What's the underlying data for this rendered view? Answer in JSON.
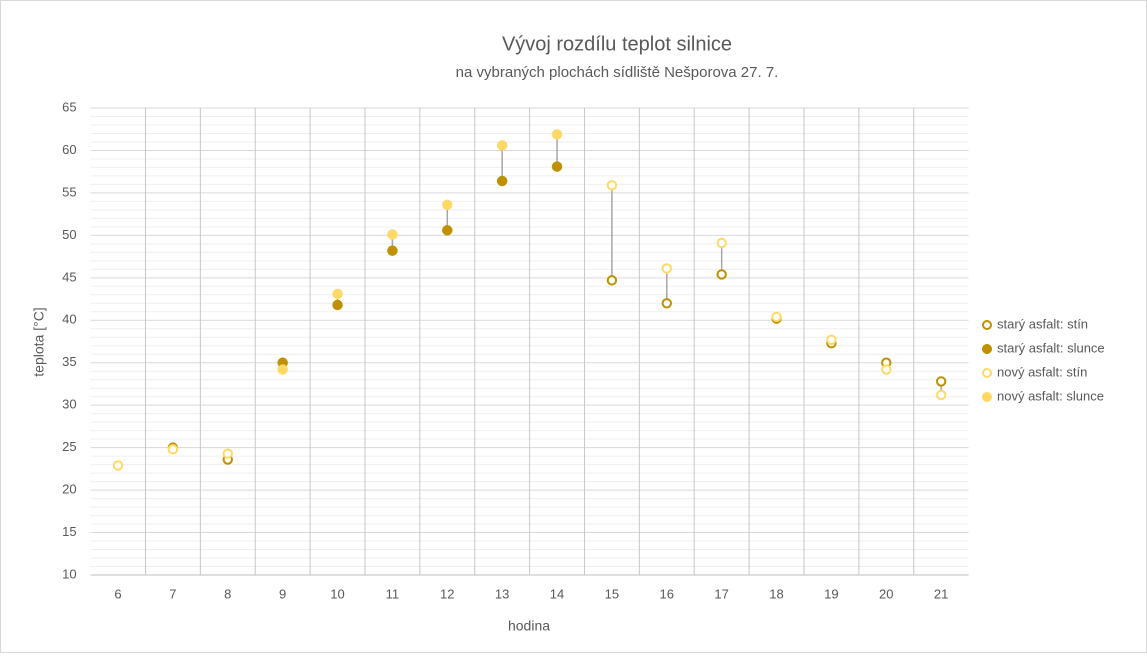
{
  "chart_data": {
    "type": "scatter",
    "title": "Vývoj rozdílu teplot silnice",
    "subtitle": "na vybraných plochách sídliště Nešporova 27. 7.",
    "x_label": "hodina",
    "y_label": "teplota [°C]",
    "categories": [
      "6",
      "7",
      "8",
      "9",
      "10",
      "11",
      "12",
      "13",
      "14",
      "15",
      "16",
      "17",
      "18",
      "19",
      "20",
      "21"
    ],
    "series": [
      {
        "name": "starý asfalt: stín",
        "color": "#bf9000",
        "hollow": true,
        "values": [
          null,
          25.0,
          23.6,
          null,
          null,
          null,
          null,
          null,
          null,
          44.7,
          42.0,
          45.4,
          40.2,
          37.3,
          35.0,
          32.8
        ]
      },
      {
        "name": "starý asfalt: slunce",
        "color": "#bf9000",
        "hollow": false,
        "values": [
          null,
          null,
          null,
          35.0,
          41.8,
          48.2,
          50.6,
          56.4,
          58.1,
          null,
          null,
          null,
          null,
          null,
          null,
          null
        ]
      },
      {
        "name": "nový asfalt: stín",
        "color": "#ffd966",
        "hollow": true,
        "values": [
          22.9,
          24.8,
          24.3,
          null,
          null,
          null,
          null,
          null,
          null,
          55.9,
          46.1,
          49.1,
          40.4,
          37.7,
          34.2,
          31.2
        ]
      },
      {
        "name": "nový asfalt: slunce",
        "color": "#ffd966",
        "hollow": false,
        "values": [
          null,
          null,
          null,
          34.2,
          43.1,
          50.1,
          53.6,
          60.6,
          61.9,
          null,
          null,
          null,
          null,
          null,
          null,
          null
        ]
      }
    ],
    "ylim": [
      10,
      65
    ],
    "yticks": [
      10,
      15,
      20,
      25,
      30,
      35,
      40,
      45,
      50,
      55,
      60,
      65
    ],
    "grid": true,
    "minor_grid": true,
    "high_low_lines": true,
    "legend": "right"
  }
}
